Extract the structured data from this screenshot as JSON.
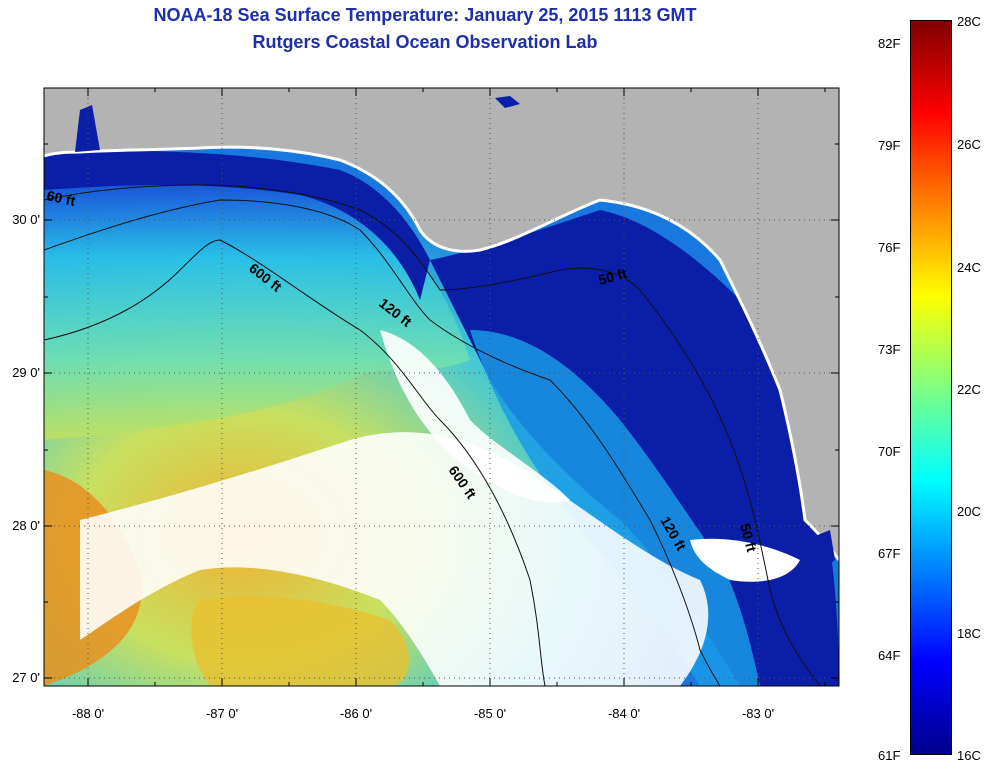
{
  "title": {
    "line1": "NOAA-18 Sea Surface Temperature:  January 25, 2015 1113 GMT",
    "line2": "Rutgers Coastal Ocean Observation Lab"
  },
  "map": {
    "latitude_labels": [
      "30 0'",
      "29 0'",
      "28 0'",
      "27 0'"
    ],
    "longitude_labels": [
      "-88 0'",
      "-87 0'",
      "-86 0'",
      "-85 0'",
      "-84 0'",
      "-83 0'"
    ],
    "contour_labels": [
      "60 ft",
      "600 ft",
      "120 ft",
      "50 ft",
      "600 ft",
      "120 ft",
      "50 ft"
    ],
    "colors": {
      "land": "#b3b3b3",
      "cloud_mask": "#ffffff",
      "coastal_cold": "#0a1ea8",
      "ocean_mid": "#1aa0e8",
      "ocean_warm": "#88e0a0",
      "ocean_hot": "#e8d040"
    }
  },
  "colorbar": {
    "scale_colors": [
      "#00008b",
      "#0000ff",
      "#0080ff",
      "#00ffff",
      "#80ff80",
      "#ffff00",
      "#ff8000",
      "#ff0000",
      "#800000"
    ],
    "fahrenheit_labels": [
      "82F",
      "79F",
      "76F",
      "73F",
      "70F",
      "67F",
      "64F",
      "61F"
    ],
    "celsius_labels": [
      "28C",
      "26C",
      "24C",
      "22C",
      "20C",
      "18C",
      "16C"
    ]
  }
}
